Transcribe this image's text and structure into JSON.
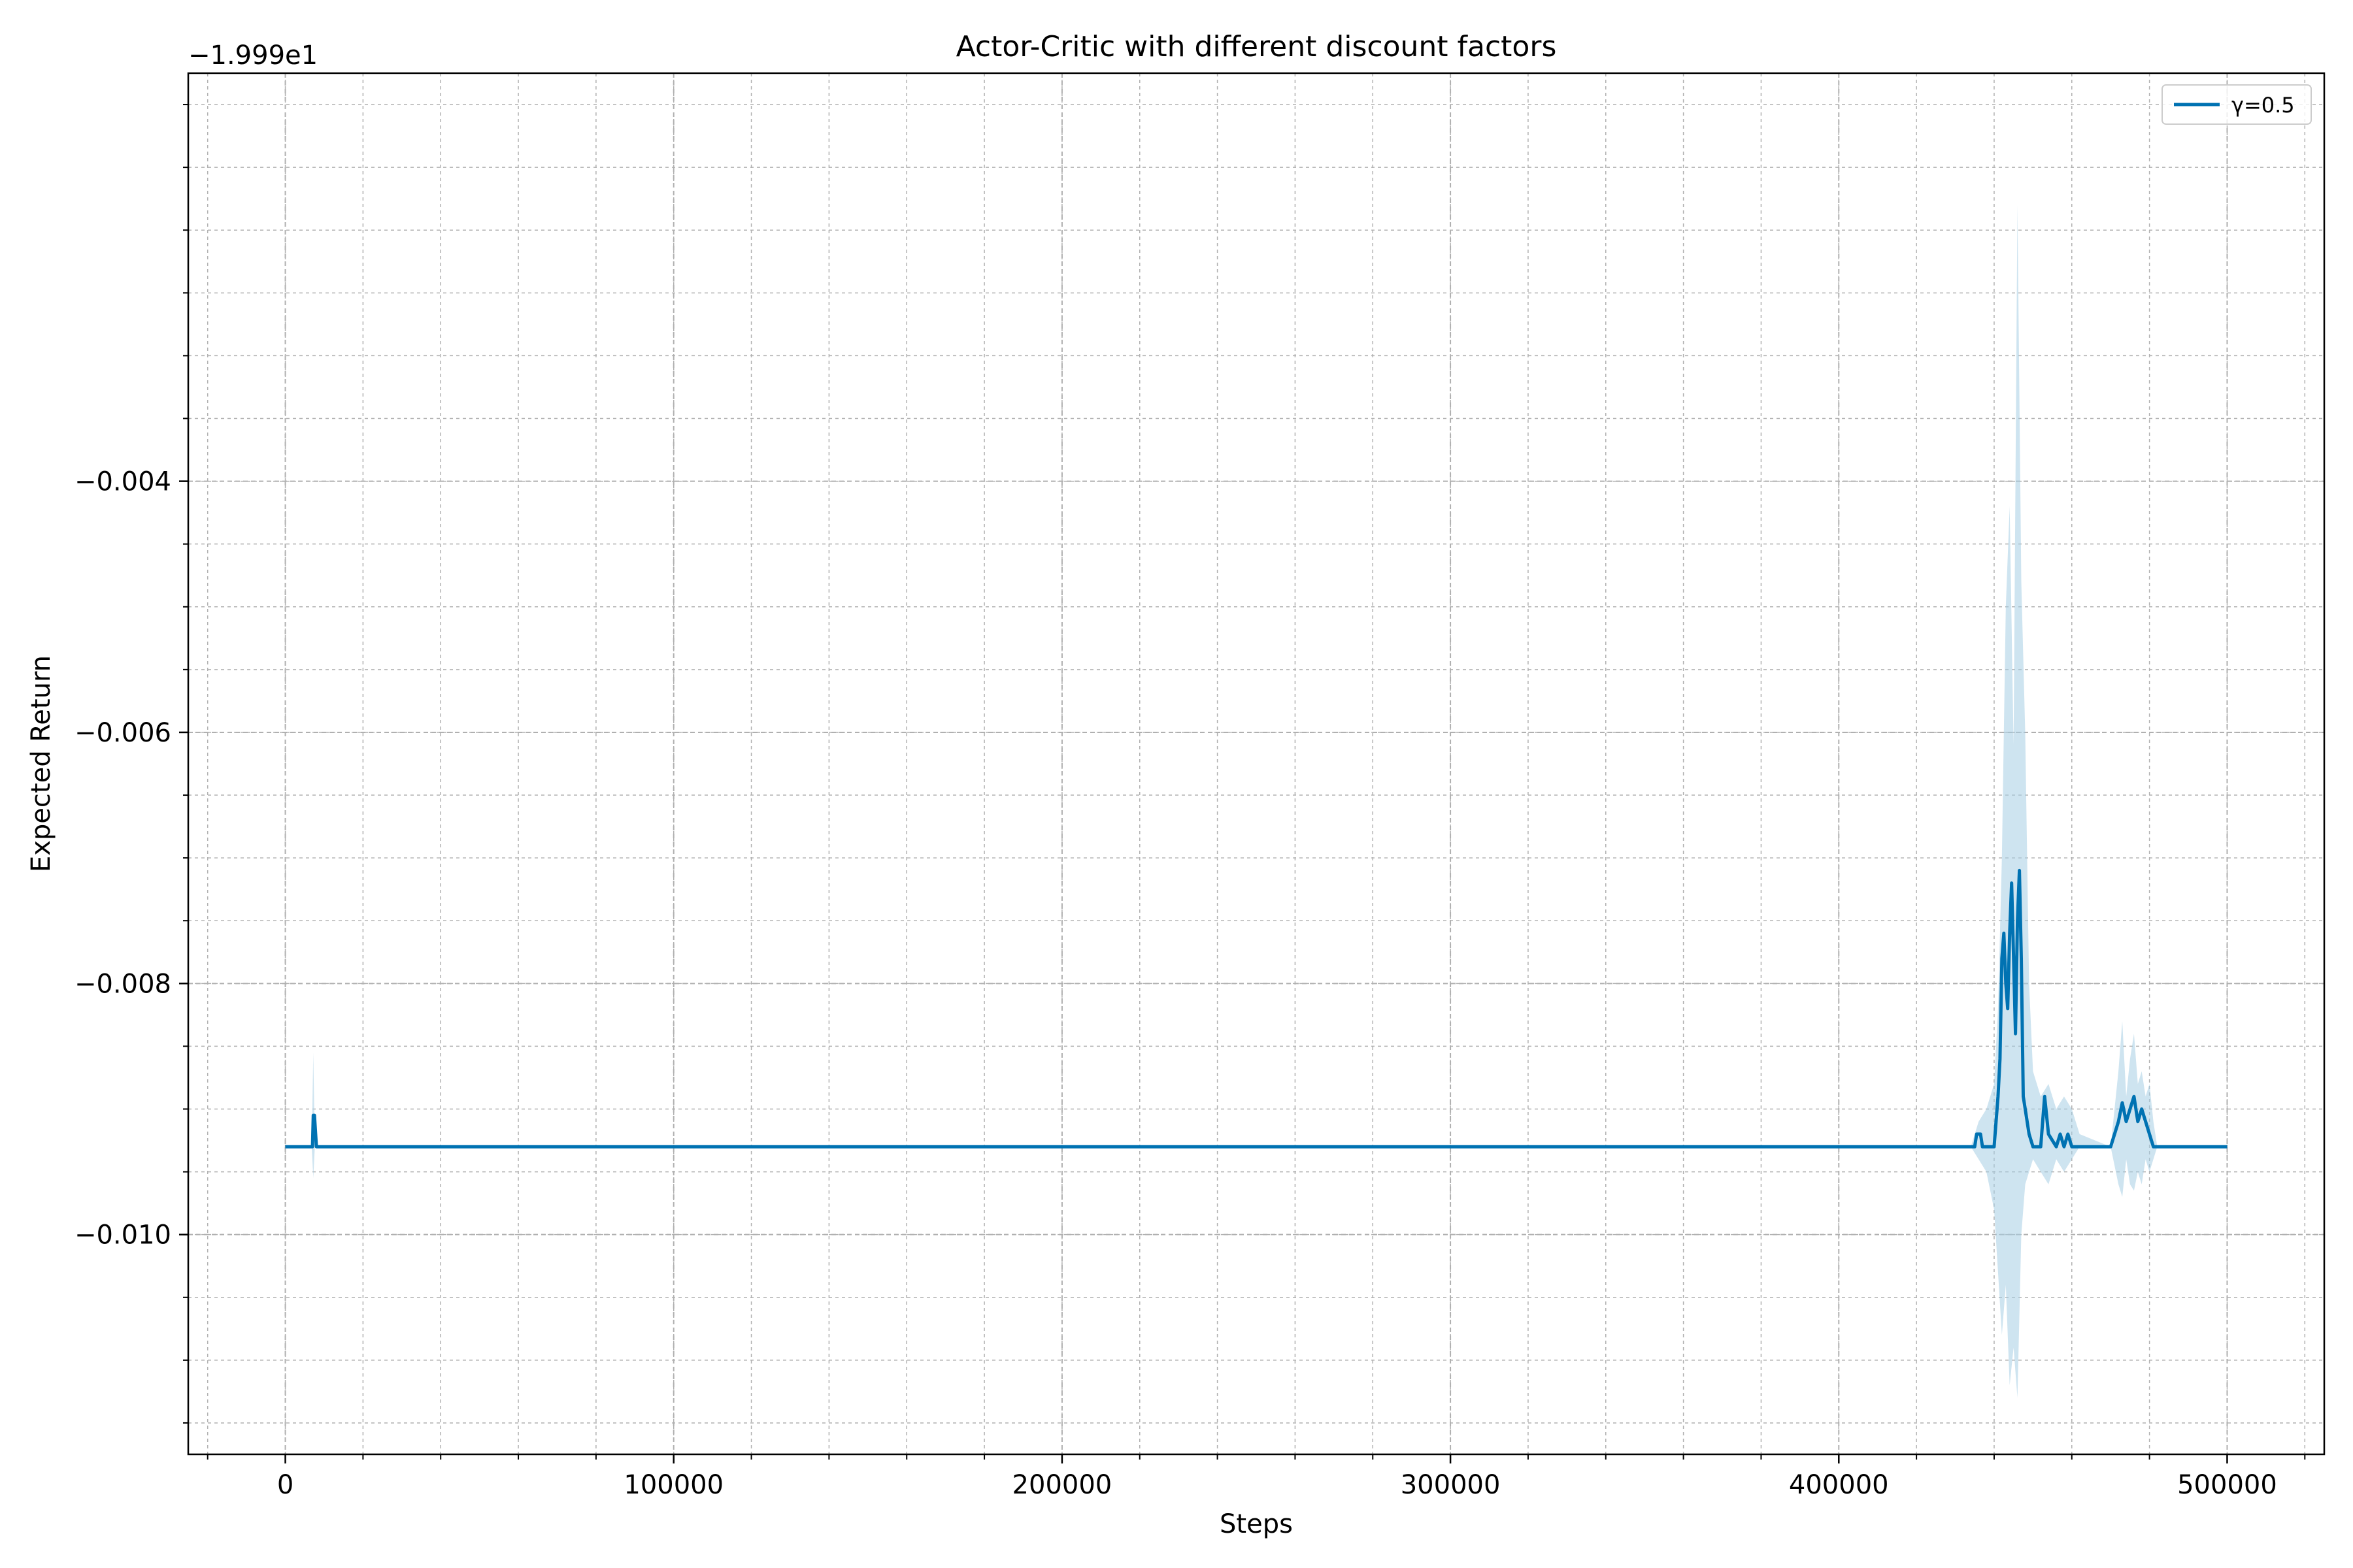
{
  "chart_data": {
    "type": "line",
    "title": "Actor-Critic with different discount factors",
    "xlabel": "Steps",
    "ylabel": "Expected Return",
    "offset_text": "−1.999e1",
    "xlim": [
      -25000,
      525000
    ],
    "ylim": [
      -0.01175,
      -0.00075
    ],
    "xticks": [
      0,
      100000,
      200000,
      300000,
      400000,
      500000
    ],
    "xtick_labels": [
      "0",
      "100000",
      "200000",
      "300000",
      "400000",
      "500000"
    ],
    "yticks": [
      -0.004,
      -0.006,
      -0.008,
      -0.01
    ],
    "ytick_labels": [
      "−0.004",
      "−0.006",
      "−0.008",
      "−0.010"
    ],
    "grid": true,
    "minor_grid": true,
    "legend_position": "top-right",
    "colors": {
      "line": "#0072b2",
      "band": "#a6cee3",
      "grid": "#b0b0b0"
    },
    "series": [
      {
        "name": "γ=0.5",
        "x": [
          0,
          7000,
          7200,
          7500,
          8000,
          435000,
          435500,
          436500,
          437000,
          440000,
          441000,
          441500,
          442000,
          442500,
          443000,
          443500,
          444000,
          444500,
          445000,
          445500,
          446000,
          446500,
          447000,
          447500,
          448000,
          449000,
          450000,
          452000,
          453000,
          454000,
          456000,
          457000,
          458000,
          459000,
          460000,
          461000,
          462000,
          470000,
          472000,
          473000,
          474000,
          475000,
          476000,
          477000,
          478000,
          479000,
          480000,
          481000,
          482000,
          500000
        ],
        "y": [
          -0.0093,
          -0.0093,
          -0.00905,
          -0.00905,
          -0.0093,
          -0.0093,
          -0.0092,
          -0.0092,
          -0.0093,
          -0.0093,
          -0.0089,
          -0.0086,
          -0.0078,
          -0.0076,
          -0.008,
          -0.0082,
          -0.0076,
          -0.0072,
          -0.0078,
          -0.0084,
          -0.0075,
          -0.0071,
          -0.0078,
          -0.0089,
          -0.009,
          -0.0092,
          -0.0093,
          -0.0093,
          -0.0089,
          -0.0092,
          -0.0093,
          -0.0092,
          -0.0093,
          -0.0092,
          -0.0093,
          -0.0093,
          -0.0093,
          -0.0093,
          -0.0091,
          -0.00895,
          -0.0091,
          -0.009,
          -0.0089,
          -0.0091,
          -0.009,
          -0.0091,
          -0.0092,
          -0.0093,
          -0.0093,
          -0.0093
        ],
        "band_x": [
          6800,
          7200,
          7600,
          8000,
          434000,
          436000,
          438000,
          440000,
          441000,
          442000,
          443000,
          444000,
          445000,
          446000,
          447000,
          448000,
          449000,
          450000,
          452000,
          454000,
          456000,
          458000,
          460000,
          462000,
          470000,
          472000,
          473000,
          474000,
          475000,
          476000,
          477000,
          478000,
          479000,
          480000,
          481000,
          482000
        ],
        "band_low": [
          -0.0093,
          -0.00955,
          -0.0093,
          -0.0093,
          -0.0093,
          -0.0094,
          -0.0095,
          -0.0098,
          -0.0103,
          -0.0108,
          -0.0104,
          -0.0112,
          -0.0109,
          -0.0113,
          -0.01,
          -0.0096,
          -0.0095,
          -0.0094,
          -0.0095,
          -0.0096,
          -0.0094,
          -0.0095,
          -0.0094,
          -0.0093,
          -0.0093,
          -0.0096,
          -0.0097,
          -0.0094,
          -0.0096,
          -0.00965,
          -0.0095,
          -0.0096,
          -0.0094,
          -0.0095,
          -0.0094,
          -0.0093
        ],
        "band_high": [
          -0.0093,
          -0.00855,
          -0.0093,
          -0.0093,
          -0.0093,
          -0.0091,
          -0.009,
          -0.0088,
          -0.0082,
          -0.007,
          -0.005,
          -0.0042,
          -0.0061,
          -0.0018,
          -0.0048,
          -0.006,
          -0.008,
          -0.0087,
          -0.0089,
          -0.0088,
          -0.009,
          -0.0089,
          -0.009,
          -0.0092,
          -0.0093,
          -0.0087,
          -0.0083,
          -0.0089,
          -0.0086,
          -0.0084,
          -0.0088,
          -0.0087,
          -0.0089,
          -0.0088,
          -0.0091,
          -0.0093
        ]
      }
    ]
  }
}
